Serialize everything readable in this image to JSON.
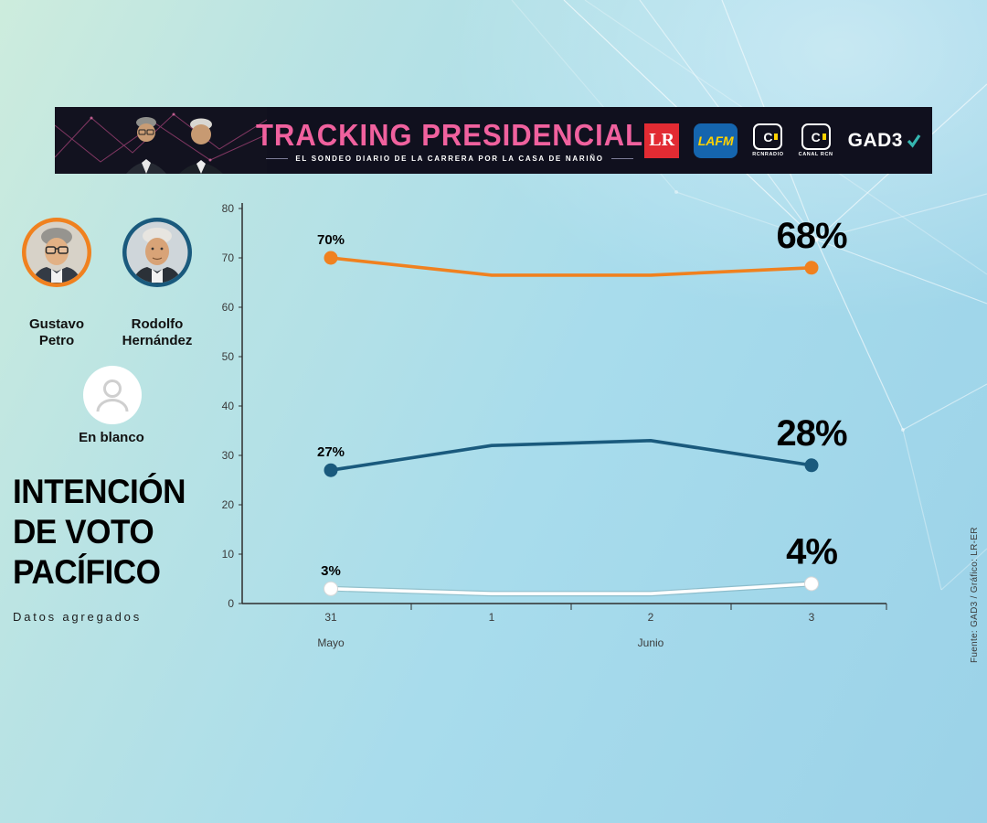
{
  "banner": {
    "title": "TRACKING PRESIDENCIAL",
    "subtitle": "EL SONDEO DIARIO DE LA CARRERA POR LA CASA DE NARIÑO",
    "logos": [
      {
        "id": "lr",
        "label": "LR"
      },
      {
        "id": "lafm",
        "label": "LAFM"
      },
      {
        "id": "rcn-radio",
        "box": "C",
        "label": "RCNRADIO"
      },
      {
        "id": "canal-rcn",
        "box": "C",
        "label": "CANAL RCN"
      },
      {
        "id": "gad3",
        "label": "GAD3"
      }
    ]
  },
  "legend": {
    "candidates": [
      {
        "name": "Gustavo Petro",
        "line1": "Gustavo",
        "line2": "Petro",
        "color": "#f0811f"
      },
      {
        "name": "Rodolfo Hernández",
        "line1": "Rodolfo",
        "line2": "Hernández",
        "color": "#1a5a7d"
      }
    ],
    "blank_label": "En blanco"
  },
  "title_block": {
    "line1": "INTENCIÓN",
    "line2": "DE VOTO",
    "line3": "PACÍFICO",
    "subtitle": "Datos agregados"
  },
  "source_note": "Fuente: GAD3 / Gráfico: LR-ER",
  "chart_data": {
    "type": "line",
    "x": [
      "31",
      "1",
      "2",
      "3"
    ],
    "month_labels": [
      {
        "label": "Mayo",
        "x_index": 0
      },
      {
        "label": "Junio",
        "x_index": 2
      }
    ],
    "ylim": [
      0,
      80
    ],
    "yticks": [
      0,
      10,
      20,
      30,
      40,
      50,
      60,
      70,
      80
    ],
    "grid": false,
    "series": [
      {
        "name": "Gustavo Petro",
        "color": "#f0811f",
        "values": [
          70,
          66.5,
          66.5,
          68
        ],
        "start_label": "70%",
        "end_label": "68%"
      },
      {
        "name": "Rodolfo Hernández",
        "color": "#1a5a7d",
        "values": [
          27,
          32,
          33,
          28
        ],
        "start_label": "27%",
        "end_label": "28%"
      },
      {
        "name": "En blanco",
        "color": "#ffffff",
        "values": [
          3,
          2,
          2,
          4
        ],
        "start_label": "3%",
        "end_label": "4%"
      }
    ]
  }
}
